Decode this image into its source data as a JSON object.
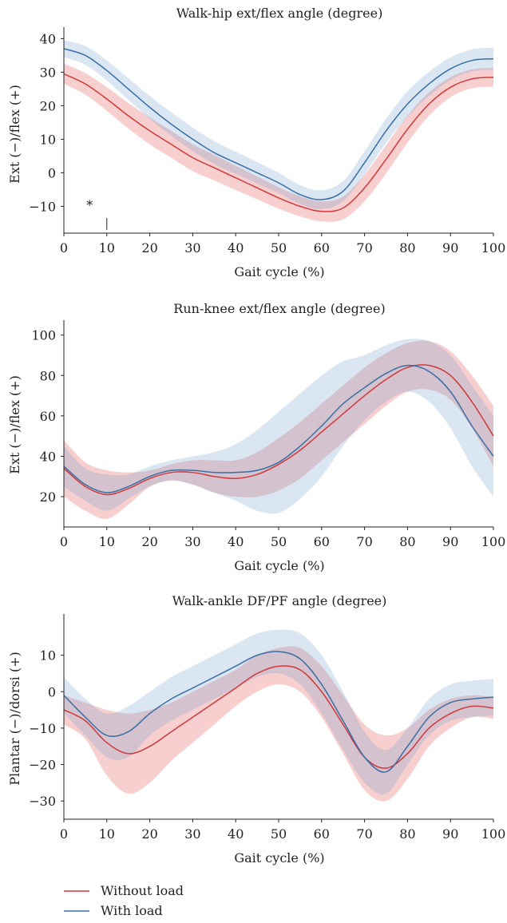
{
  "legend": {
    "items": [
      {
        "label": "Without load",
        "color": "#d03a3c"
      },
      {
        "label": "With load",
        "color": "#3a6fa4"
      }
    ]
  },
  "chart_data": [
    {
      "type": "line",
      "title": "Walk-hip ext/flex angle (degree)",
      "xlabel": "Gait cycle (%)",
      "ylabel": "Ext (−)/flex (+)",
      "xlim": [
        0,
        100
      ],
      "ylim": [
        -18,
        42
      ],
      "xticks": [
        0,
        10,
        20,
        30,
        40,
        50,
        60,
        70,
        80,
        90,
        100
      ],
      "yticks": [
        -10,
        0,
        10,
        20,
        30,
        40
      ],
      "annotation": {
        "text": "*",
        "x": 6,
        "y": -11
      },
      "marker": {
        "x": 10,
        "y1": -17,
        "y2": -13.5
      },
      "x": [
        0,
        5,
        10,
        15,
        20,
        25,
        30,
        35,
        40,
        45,
        50,
        55,
        60,
        65,
        70,
        75,
        80,
        85,
        90,
        95,
        100
      ],
      "series": [
        {
          "name": "Without load",
          "color": "#d03a3c",
          "values": [
            29.5,
            26.5,
            22.0,
            17.0,
            12.5,
            8.5,
            4.5,
            1.5,
            -1.5,
            -4.5,
            -7.5,
            -10.0,
            -11.5,
            -10.5,
            -4.5,
            4.0,
            13.0,
            20.5,
            25.5,
            28.0,
            28.5
          ],
          "band": [
            3.0,
            3.2,
            3.5,
            3.8,
            4.0,
            4.0,
            4.0,
            3.8,
            3.6,
            3.4,
            3.2,
            3.0,
            3.0,
            3.4,
            4.0,
            4.2,
            4.0,
            3.5,
            3.0,
            2.8,
            2.8
          ]
        },
        {
          "name": "With load",
          "color": "#3a6fa4",
          "values": [
            37.0,
            35.0,
            30.5,
            25.0,
            19.5,
            14.5,
            10.0,
            6.0,
            3.0,
            0.0,
            -3.0,
            -6.5,
            -8.0,
            -5.5,
            3.0,
            12.5,
            20.5,
            26.5,
            31.0,
            33.5,
            34.0
          ],
          "band": [
            2.5,
            2.8,
            3.0,
            3.2,
            3.4,
            3.5,
            3.5,
            3.4,
            3.3,
            3.2,
            3.0,
            2.8,
            2.8,
            3.0,
            3.4,
            3.6,
            3.8,
            3.6,
            3.4,
            3.3,
            3.3
          ]
        }
      ]
    },
    {
      "type": "line",
      "title": "Run-knee ext/flex angle (degree)",
      "xlabel": "Gait cycle (%)",
      "ylabel": "Ext (−)/flex (+)",
      "xlim": [
        0,
        100
      ],
      "ylim": [
        5,
        105
      ],
      "xticks": [
        0,
        10,
        20,
        30,
        40,
        50,
        60,
        70,
        80,
        90,
        100
      ],
      "yticks": [
        20,
        40,
        60,
        80,
        100
      ],
      "x": [
        0,
        5,
        10,
        15,
        20,
        25,
        30,
        35,
        40,
        45,
        50,
        55,
        60,
        65,
        70,
        75,
        80,
        85,
        90,
        95,
        100
      ],
      "series": [
        {
          "name": "Without load",
          "color": "#d03a3c",
          "values": [
            34,
            25,
            21,
            24,
            29,
            32,
            32,
            30,
            29,
            31,
            36,
            43,
            52,
            61,
            70,
            78,
            84,
            85,
            80,
            67,
            50
          ],
          "band": [
            14,
            12,
            12,
            8,
            4,
            4,
            6,
            8,
            9,
            11,
            13,
            14,
            14,
            14,
            14,
            13,
            12,
            12,
            12,
            13,
            15
          ]
        },
        {
          "name": "With load",
          "color": "#3a6fa4",
          "values": [
            35,
            26,
            22,
            25,
            30,
            33,
            33,
            32,
            32,
            33,
            37,
            45,
            55,
            66,
            74,
            81,
            85,
            82,
            72,
            55,
            40
          ],
          "band": [
            10,
            8,
            9,
            6,
            5,
            5,
            7,
            10,
            14,
            20,
            25,
            26,
            25,
            21,
            16,
            14,
            13,
            15,
            18,
            20,
            20
          ]
        }
      ]
    },
    {
      "type": "line",
      "title": "Walk-ankle DF/PF angle (degree)",
      "xlabel": "Gait cycle (%)",
      "ylabel": "Plantar (−)/dorsi (+)",
      "xlim": [
        0,
        100
      ],
      "ylim": [
        -35,
        20
      ],
      "xticks": [
        0,
        10,
        20,
        30,
        40,
        50,
        60,
        70,
        80,
        90,
        100
      ],
      "yticks": [
        -30,
        -20,
        -10,
        0,
        10
      ],
      "x": [
        0,
        5,
        10,
        15,
        20,
        25,
        30,
        35,
        40,
        45,
        50,
        55,
        60,
        65,
        70,
        75,
        80,
        85,
        90,
        95,
        100
      ],
      "series": [
        {
          "name": "Without load",
          "color": "#d03a3c",
          "values": [
            -5,
            -8,
            -14,
            -17,
            -15,
            -11,
            -7,
            -3,
            1,
            5,
            7,
            6,
            0,
            -9,
            -18,
            -21,
            -17,
            -10,
            -6,
            -4,
            -4.5
          ],
          "band": [
            4,
            5,
            9,
            11,
            10,
            8,
            7,
            6,
            5,
            5,
            5,
            6,
            7,
            8,
            9,
            9,
            7,
            5,
            4,
            3,
            3
          ]
        },
        {
          "name": "With load",
          "color": "#3a6fa4",
          "values": [
            -1,
            -7,
            -12,
            -11,
            -6,
            -2,
            1,
            4,
            7,
            10,
            11,
            9,
            2,
            -8,
            -18,
            -22,
            -15,
            -7,
            -3,
            -2,
            -1.5
          ],
          "band": [
            5,
            5,
            6,
            7,
            6,
            6,
            6,
            6,
            6,
            6,
            6,
            7,
            8,
            8,
            7,
            6,
            5,
            5,
            5,
            5,
            5
          ]
        }
      ]
    }
  ]
}
